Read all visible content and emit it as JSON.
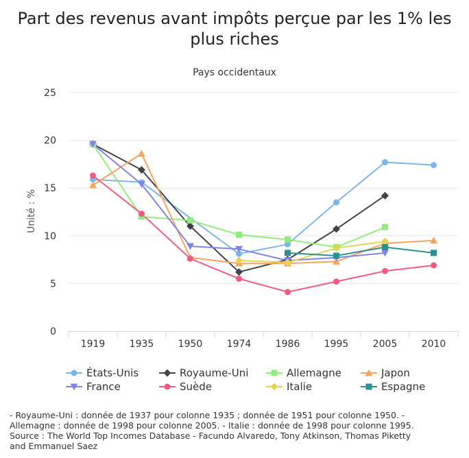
{
  "chart_data": {
    "type": "line",
    "title": "Part des revenus avant impôts perçue par les 1% les plus riches",
    "subtitle": "Pays occidentaux",
    "xlabel": "",
    "ylabel": "Unité : %",
    "categories": [
      "1919",
      "1935",
      "1950",
      "1974",
      "1986",
      "1995",
      "2005",
      "2010"
    ],
    "ylim": [
      0,
      25
    ],
    "yticks": [
      0,
      5,
      10,
      15,
      20,
      25
    ],
    "grid": true,
    "legend_position": "bottom",
    "series": [
      {
        "name": "États-Unis",
        "color": "#7cb5ec",
        "marker": "circle",
        "values": [
          15.9,
          15.6,
          null,
          8.1,
          9.1,
          13.5,
          17.7,
          17.4
        ]
      },
      {
        "name": "Royaume-Uni",
        "color": "#434348",
        "marker": "diamond",
        "values": [
          19.6,
          16.9,
          11.0,
          6.2,
          7.5,
          10.7,
          14.2,
          null
        ]
      },
      {
        "name": "Allemagne",
        "color": "#90ed7d",
        "marker": "square",
        "values": [
          19.6,
          12.0,
          11.6,
          10.1,
          9.6,
          8.8,
          10.9,
          null
        ]
      },
      {
        "name": "Japon",
        "color": "#f7a35c",
        "marker": "triangle",
        "values": [
          15.3,
          18.6,
          7.7,
          7.1,
          7.1,
          7.3,
          9.2,
          9.5
        ]
      },
      {
        "name": "France",
        "color": "#8085e9",
        "marker": "triangle-down",
        "values": [
          19.6,
          15.4,
          8.9,
          8.6,
          7.4,
          7.7,
          8.2,
          null
        ]
      },
      {
        "name": "Suède",
        "color": "#f15c80",
        "marker": "circle",
        "values": [
          16.3,
          12.3,
          7.6,
          5.5,
          4.1,
          5.2,
          6.3,
          6.9
        ]
      },
      {
        "name": "Italie",
        "color": "#e4d354",
        "marker": "diamond",
        "values": [
          null,
          null,
          null,
          7.4,
          7.2,
          8.7,
          9.4,
          null
        ]
      },
      {
        "name": "Espagne",
        "color": "#2b908f",
        "marker": "square",
        "values": [
          null,
          null,
          null,
          null,
          8.2,
          7.9,
          8.8,
          8.2
        ]
      }
    ]
  },
  "footnote": {
    "lines": [
      "- Royaume-Uni : donnée de 1937 pour colonne 1935 ; donnée de 1951 pour colonne 1950. -",
      "Allemagne : donnée de 1998 pour colonne 2005. - Italie : donnée de 1998 pour colonne 1995.",
      "Source : The World Top Incomes Database - Facundo Alvaredo, Tony Atkinson, Thomas Piketty",
      "and Emmanuel Saez"
    ]
  }
}
